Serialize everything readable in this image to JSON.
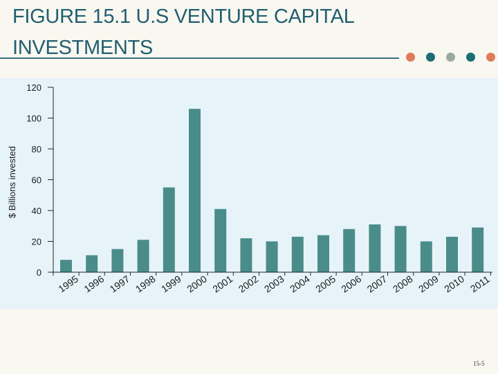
{
  "slide": {
    "title_line1": "FIGURE 15.1 U.S VENTURE CAPITAL",
    "title_line2": "INVESTMENTS",
    "page_number": "15-5",
    "accent_dots": [
      "#e07b5a",
      "#1b6e74",
      "#9aa9a0",
      "#1b6e74",
      "#e07b5a"
    ]
  },
  "colors": {
    "bar": "#4a8c89",
    "axis": "#222222",
    "panel": "#e6f4fa",
    "title": "#215f71"
  },
  "chart_data": {
    "type": "bar",
    "title": "",
    "xlabel": "",
    "ylabel": "$ Billions invested",
    "ylim": [
      0,
      120
    ],
    "yticks": [
      0,
      20,
      40,
      60,
      80,
      100,
      120
    ],
    "grid": false,
    "categories": [
      "1995",
      "1996",
      "1997",
      "1998",
      "1999",
      "2000",
      "2001",
      "2002",
      "2003",
      "2004",
      "2005",
      "2006",
      "2007",
      "2008",
      "2009",
      "2010",
      "2011"
    ],
    "values": [
      8,
      11,
      15,
      21,
      55,
      106,
      41,
      22,
      20,
      23,
      24,
      28,
      31,
      30,
      20,
      23,
      29
    ]
  }
}
